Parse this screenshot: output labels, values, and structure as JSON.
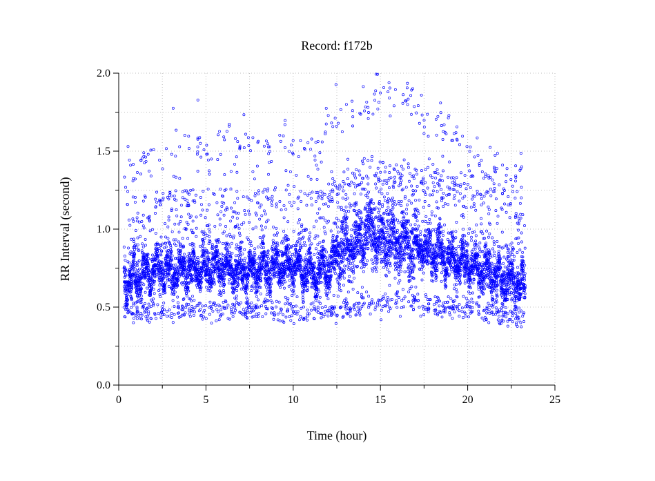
{
  "chart_data": {
    "type": "scatter",
    "title": "Record:  f172b",
    "xlabel": "Time (hour)",
    "ylabel": "RR Interval (second)",
    "xlim": [
      0,
      25
    ],
    "ylim": [
      0,
      2
    ],
    "x_ticks": [
      0,
      5,
      10,
      15,
      20,
      25
    ],
    "x_tick_labels": [
      "0",
      "5",
      "10",
      "15",
      "20",
      "25"
    ],
    "y_ticks": [
      0,
      0.5,
      1,
      1.5,
      2
    ],
    "y_tick_labels": [
      "0.0",
      "0.5",
      "1.0",
      "1.5",
      "2.0"
    ],
    "grid": true,
    "marker_color": "#0000ff",
    "series": [
      {
        "baseline_trend": {
          "x": [
            0.3,
            1,
            2,
            3,
            4,
            5,
            6,
            7,
            8,
            9,
            10,
            11,
            12,
            12.5,
            13,
            13.5,
            14,
            14.5,
            15,
            16,
            17,
            18,
            19,
            20,
            21,
            22,
            23,
            23.3
          ],
          "y": [
            0.65,
            0.7,
            0.74,
            0.73,
            0.74,
            0.75,
            0.76,
            0.72,
            0.73,
            0.76,
            0.77,
            0.72,
            0.74,
            0.82,
            0.88,
            0.87,
            0.95,
            0.97,
            0.93,
            0.92,
            0.88,
            0.86,
            0.8,
            0.77,
            0.72,
            0.68,
            0.66,
            0.62
          ]
        },
        "high_cluster_trend": {
          "x": [
            0.3,
            2,
            4,
            6,
            8,
            10,
            11.5,
            12.5,
            13.5,
            15,
            16.5,
            18,
            19.5,
            20.5,
            22,
            23.3
          ],
          "y": [
            1.35,
            1.45,
            1.5,
            1.52,
            1.5,
            1.55,
            1.45,
            1.75,
            1.72,
            1.85,
            1.85,
            1.65,
            1.6,
            1.42,
            1.35,
            1.3
          ]
        },
        "low_cluster_trend": {
          "x": [
            0.3,
            2,
            4,
            6,
            8,
            10,
            12,
            13,
            14,
            15,
            16,
            17,
            18,
            19,
            20,
            21,
            22,
            23.3
          ],
          "y": [
            0.47,
            0.48,
            0.48,
            0.49,
            0.48,
            0.48,
            0.48,
            0.5,
            0.52,
            0.53,
            0.55,
            0.54,
            0.5,
            0.5,
            0.5,
            0.47,
            0.45,
            0.43
          ]
        },
        "x_range": [
          0.3,
          23.3
        ]
      }
    ]
  }
}
